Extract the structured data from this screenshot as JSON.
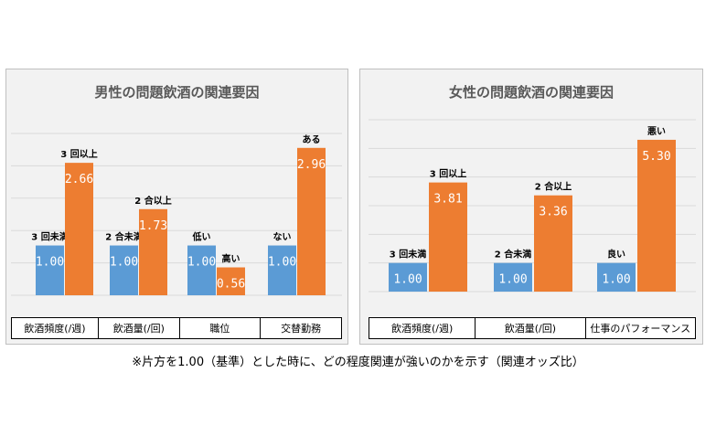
{
  "caption": "※片方を1.00（基準）とした時に、どの程度関連が強いのかを示す（関連オッズ比）",
  "colors": {
    "reference": "#5b9bd5",
    "comparison": "#ed7d31",
    "grid": "#d9d9d9"
  },
  "chart_data": [
    {
      "type": "bar",
      "title": "男性の問題飲酒の関連要因",
      "ylim": [
        0,
        3.25
      ],
      "grid": true,
      "categories": [
        "飲酒頻度(/週)",
        "飲酒量(/回)",
        "職位",
        "交替勤務"
      ],
      "bars": [
        [
          {
            "label": "3 回未満",
            "value": 1.0,
            "display": "1.00",
            "color": "blue"
          },
          {
            "label": "3 回以上",
            "value": 2.66,
            "display": "2.66",
            "color": "orange"
          }
        ],
        [
          {
            "label": "2 合未満",
            "value": 1.0,
            "display": "1.00",
            "color": "blue"
          },
          {
            "label": "2 合以上",
            "value": 1.73,
            "display": "1.73",
            "color": "orange"
          }
        ],
        [
          {
            "label": "低い",
            "value": 1.0,
            "display": "1.00",
            "color": "blue"
          },
          {
            "label": "高い",
            "value": 0.56,
            "display": "0.56",
            "color": "orange"
          }
        ],
        [
          {
            "label": "ない",
            "value": 1.0,
            "display": "1.00",
            "color": "blue"
          },
          {
            "label": "ある",
            "value": 2.96,
            "display": "2.96",
            "color": "orange"
          }
        ]
      ]
    },
    {
      "type": "bar",
      "title": "女性の問題飲酒の関連要因",
      "ylim": [
        0,
        6.0
      ],
      "grid": true,
      "categories": [
        "飲酒頻度(/週)",
        "飲酒量(/回)",
        "仕事のパフォーマンス"
      ],
      "bars": [
        [
          {
            "label": "3 回未満",
            "value": 1.0,
            "display": "1.00",
            "color": "blue"
          },
          {
            "label": "3 回以上",
            "value": 3.81,
            "display": "3.81",
            "color": "orange"
          }
        ],
        [
          {
            "label": "2 合未満",
            "value": 1.0,
            "display": "1.00",
            "color": "blue"
          },
          {
            "label": "2 合以上",
            "value": 3.36,
            "display": "3.36",
            "color": "orange"
          }
        ],
        [
          {
            "label": "良い",
            "value": 1.0,
            "display": "1.00",
            "color": "blue"
          },
          {
            "label": "悪い",
            "value": 5.3,
            "display": "5.30",
            "color": "orange"
          }
        ]
      ]
    }
  ]
}
